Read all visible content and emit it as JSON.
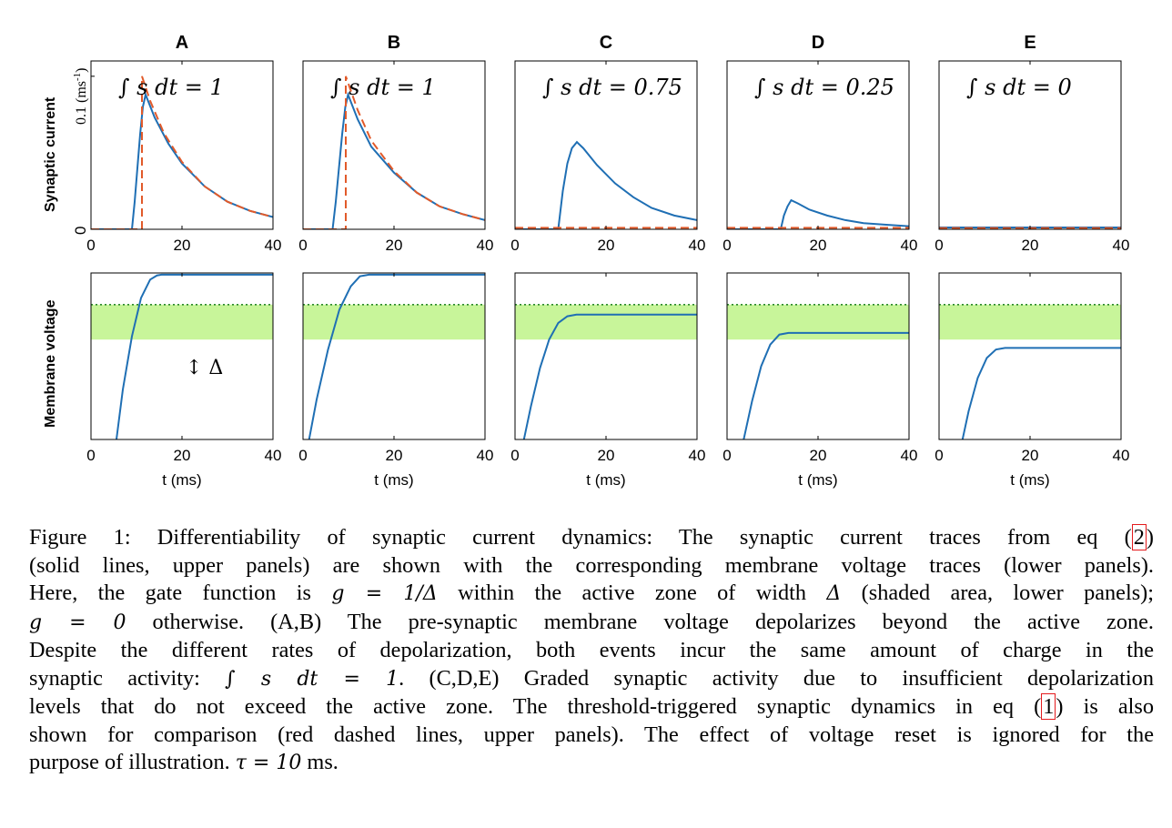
{
  "figure": {
    "colors": {
      "solid": "#1f6fb4",
      "dashed": "#e15a2a",
      "threshold": "#2a8a2a",
      "active_zone": "#c8f59a"
    },
    "upper_ylabel": "Synaptic current",
    "upper_ylabel_unit": "0.1  (ms",
    "upper_ylabel_sup": "-1",
    "upper_ylabel_close": ")",
    "upper_y_zero": "0",
    "lower_ylabel": "Membrane voltage",
    "x_ticks": [
      "0",
      "20",
      "40"
    ],
    "xlabel": "t (ms)",
    "delta_symbol": "↕ Δ",
    "panels": [
      {
        "letter": "A",
        "integral": "∫ s dt = 1"
      },
      {
        "letter": "B",
        "integral": "∫ s dt = 1"
      },
      {
        "letter": "C",
        "integral": "∫ s dt = 0.75"
      },
      {
        "letter": "D",
        "integral": "∫ s dt = 0.25"
      },
      {
        "letter": "E",
        "integral": "∫ s dt = 0"
      }
    ]
  },
  "chart_data": [
    {
      "type": "line",
      "panel": "A",
      "row": "synaptic current",
      "xlim": [
        0,
        40
      ],
      "ylim": [
        0,
        0.11
      ],
      "series": [
        {
          "style": "solid",
          "x": [
            0,
            9,
            9.6,
            10.2,
            10.8,
            11.4,
            12,
            14,
            17,
            20,
            25,
            30,
            35,
            40
          ],
          "y": [
            0,
            0,
            0.018,
            0.04,
            0.062,
            0.08,
            0.088,
            0.073,
            0.056,
            0.043,
            0.028,
            0.018,
            0.012,
            0.008
          ]
        },
        {
          "style": "dashed",
          "x": [
            0,
            11.2,
            11.2,
            13,
            16,
            20,
            25,
            30,
            35,
            40
          ],
          "y": [
            0,
            0,
            0.1,
            0.084,
            0.063,
            0.044,
            0.028,
            0.018,
            0.012,
            0.008
          ]
        }
      ]
    },
    {
      "type": "line",
      "panel": "B",
      "row": "synaptic current",
      "xlim": [
        0,
        40
      ],
      "ylim": [
        0,
        0.11
      ],
      "series": [
        {
          "style": "solid",
          "x": [
            0,
            6.5,
            7.2,
            7.9,
            8.6,
            9.3,
            9.9,
            12,
            15,
            20,
            25,
            30,
            35,
            40
          ],
          "y": [
            0,
            0,
            0.018,
            0.04,
            0.062,
            0.08,
            0.088,
            0.072,
            0.054,
            0.037,
            0.024,
            0.015,
            0.01,
            0.006
          ]
        },
        {
          "style": "dashed",
          "x": [
            0,
            9.4,
            9.4,
            12,
            15,
            20,
            25,
            30,
            35,
            40
          ],
          "y": [
            0,
            0,
            0.1,
            0.078,
            0.058,
            0.038,
            0.024,
            0.015,
            0.01,
            0.006
          ]
        }
      ]
    },
    {
      "type": "line",
      "panel": "C",
      "row": "synaptic current",
      "xlim": [
        0,
        40
      ],
      "ylim": [
        0,
        0.11
      ],
      "series": [
        {
          "style": "solid",
          "x": [
            0,
            9.5,
            10.5,
            11.5,
            12.5,
            13.6,
            15,
            18,
            22,
            26,
            30,
            35,
            40
          ],
          "y": [
            0,
            0,
            0.025,
            0.043,
            0.053,
            0.057,
            0.053,
            0.042,
            0.03,
            0.021,
            0.014,
            0.009,
            0.006
          ]
        },
        {
          "style": "dashed",
          "x": [
            0,
            40
          ],
          "y": [
            0.001,
            0.001
          ]
        }
      ]
    },
    {
      "type": "line",
      "panel": "D",
      "row": "synaptic current",
      "xlim": [
        0,
        40
      ],
      "ylim": [
        0,
        0.11
      ],
      "series": [
        {
          "style": "solid",
          "x": [
            0,
            11.8,
            12.5,
            13.3,
            14.1,
            15.5,
            18,
            22,
            26,
            30,
            35,
            40
          ],
          "y": [
            0,
            0,
            0.009,
            0.015,
            0.019,
            0.017,
            0.013,
            0.009,
            0.006,
            0.004,
            0.003,
            0.002
          ]
        },
        {
          "style": "dashed",
          "x": [
            0,
            40
          ],
          "y": [
            0.001,
            0.001
          ]
        }
      ]
    },
    {
      "type": "line",
      "panel": "E",
      "row": "synaptic current",
      "xlim": [
        0,
        40
      ],
      "ylim": [
        0,
        0.11
      ],
      "series": [
        {
          "style": "solid",
          "x": [
            0,
            40
          ],
          "y": [
            0.0012,
            0.0012
          ]
        },
        {
          "style": "dashed",
          "x": [
            0,
            40
          ],
          "y": [
            0.0008,
            0.0008
          ]
        }
      ]
    },
    {
      "type": "line",
      "panel": "A",
      "row": "membrane voltage",
      "xlim": [
        0,
        40
      ],
      "ylim": [
        0,
        1
      ],
      "threshold": 0.81,
      "active_zone": [
        0.6,
        0.81
      ],
      "series": [
        {
          "style": "solid",
          "x": [
            5.5,
            7,
            9,
            11,
            13,
            14.5,
            15.5,
            40
          ],
          "y": [
            -0.02,
            0.3,
            0.62,
            0.85,
            0.96,
            0.985,
            0.99,
            0.99
          ]
        }
      ]
    },
    {
      "type": "line",
      "panel": "B",
      "row": "membrane voltage",
      "xlim": [
        0,
        40
      ],
      "ylim": [
        0,
        1
      ],
      "threshold": 0.81,
      "active_zone": [
        0.6,
        0.81
      ],
      "series": [
        {
          "style": "solid",
          "x": [
            1.2,
            3,
            5.5,
            8,
            10.5,
            12.5,
            14.5,
            40
          ],
          "y": [
            -0.02,
            0.24,
            0.54,
            0.78,
            0.92,
            0.98,
            0.99,
            0.99
          ]
        }
      ]
    },
    {
      "type": "line",
      "panel": "C",
      "row": "membrane voltage",
      "xlim": [
        0,
        40
      ],
      "ylim": [
        0,
        1
      ],
      "threshold": 0.81,
      "active_zone": [
        0.6,
        0.81
      ],
      "series": [
        {
          "style": "solid",
          "x": [
            1.8,
            3.5,
            5.5,
            7.5,
            9.5,
            11.5,
            13.5,
            40
          ],
          "y": [
            -0.02,
            0.2,
            0.43,
            0.6,
            0.7,
            0.74,
            0.75,
            0.75
          ]
        }
      ]
    },
    {
      "type": "line",
      "panel": "D",
      "row": "membrane voltage",
      "xlim": [
        0,
        40
      ],
      "ylim": [
        0,
        1
      ],
      "threshold": 0.81,
      "active_zone": [
        0.6,
        0.81
      ],
      "series": [
        {
          "style": "solid",
          "x": [
            3.5,
            5.5,
            7.5,
            9.5,
            11.5,
            13.5,
            15,
            40
          ],
          "y": [
            -0.02,
            0.23,
            0.44,
            0.57,
            0.63,
            0.64,
            0.64,
            0.64
          ]
        }
      ]
    },
    {
      "type": "line",
      "panel": "E",
      "row": "membrane voltage",
      "xlim": [
        0,
        40
      ],
      "ylim": [
        0,
        1
      ],
      "threshold": 0.81,
      "active_zone": [
        0.6,
        0.81
      ],
      "series": [
        {
          "style": "solid",
          "x": [
            5,
            6.5,
            8.5,
            10.5,
            12.5,
            14.5,
            40
          ],
          "y": [
            -0.02,
            0.17,
            0.37,
            0.49,
            0.54,
            0.55,
            0.55
          ]
        }
      ]
    }
  ],
  "caption": {
    "lines": [
      [
        "Figure 1:   Differentiability of synaptic current dynamics: The synaptic current traces from eq (",
        {
          "ref": "2"
        },
        ")"
      ],
      [
        "(solid lines, upper panels) are shown with the corresponding membrane voltage traces (lower panels)."
      ],
      [
        "Here, the gate function is ",
        {
          "math": "g = 1/Δ"
        },
        " within the active zone of width ",
        {
          "math": "Δ"
        },
        " (shaded area, lower panels);"
      ],
      [
        {
          "math": "g = 0"
        },
        " otherwise.  (A,B) The pre-synaptic membrane voltage depolarizes beyond the active zone."
      ],
      [
        "Despite the different rates of depolarization, both events incur the same amount of charge in the"
      ],
      [
        "synaptic activity: ",
        {
          "math": "∫ s dt = 1"
        },
        ".  (C,D,E) Graded synaptic activity due to insufficient depolarization"
      ],
      [
        "levels that do not exceed the active zone. The threshold-triggered synaptic dynamics in eq (",
        {
          "ref": "1"
        },
        ") is also"
      ],
      [
        "shown for comparison (red dashed lines, upper panels). The effect of voltage reset is ignored for the"
      ],
      [
        "purpose of illustration. ",
        {
          "math": "τ = 10"
        },
        " ms."
      ]
    ]
  }
}
